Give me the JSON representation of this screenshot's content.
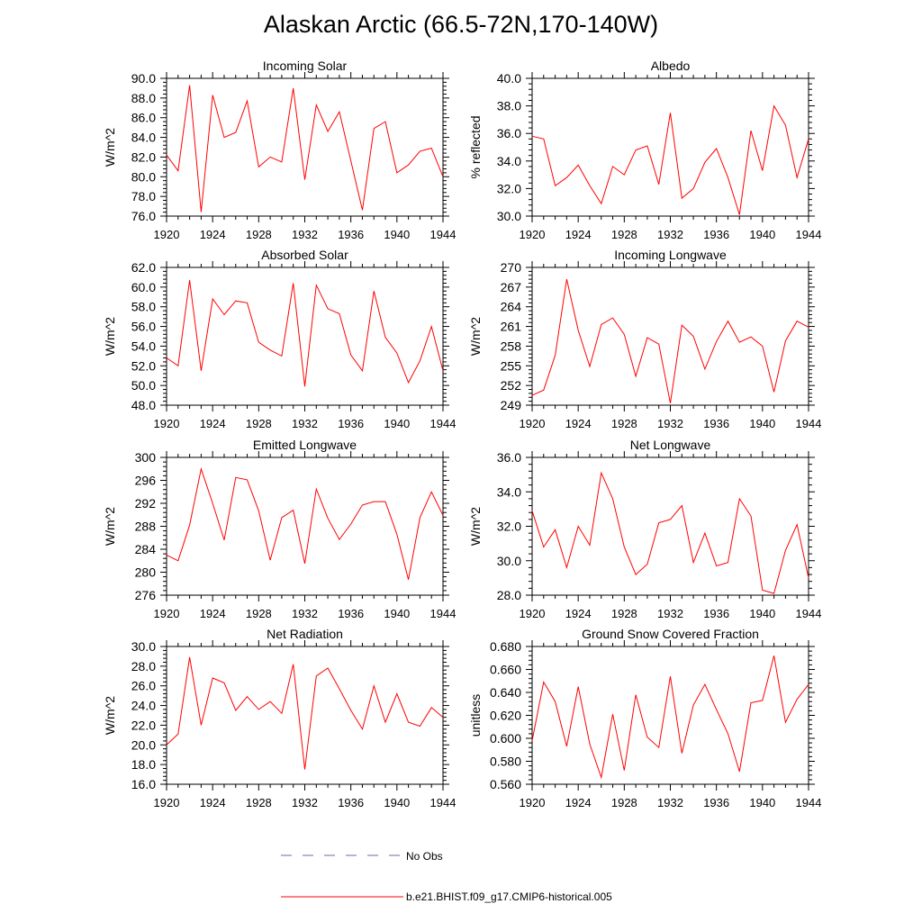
{
  "figure": {
    "title": "Alaskan Arctic (66.5-72N,170-140W)"
  },
  "legend": {
    "obs_label": "No Obs",
    "obs_color": "#6a6aa8",
    "model_label": "b.e21.BHIST.f09_g17.CMIP6-historical.005",
    "model_color": "#ff0000"
  },
  "chart_data": [
    {
      "type": "line",
      "title": "Incoming Solar",
      "ylabel": "W/m^2",
      "xlim": [
        1920,
        1944
      ],
      "ylim": [
        76.0,
        90.0
      ],
      "xticks": [
        "1920",
        "1924",
        "1928",
        "1932",
        "1936",
        "1940",
        "1944"
      ],
      "yticks": [
        "76.0",
        "78.0",
        "80.0",
        "82.0",
        "84.0",
        "86.0",
        "88.0",
        "90.0"
      ],
      "x": [
        1920,
        1921,
        1922,
        1923,
        1924,
        1925,
        1926,
        1927,
        1928,
        1929,
        1930,
        1931,
        1932,
        1933,
        1934,
        1935,
        1936,
        1937,
        1938,
        1939,
        1940,
        1941,
        1942,
        1943,
        1944
      ],
      "series": [
        {
          "name": "b.e21.BHIST.f09_g17.CMIP6-historical.005",
          "values": [
            82.2,
            80.6,
            89.3,
            76.4,
            88.3,
            84.0,
            84.5,
            87.7,
            81.0,
            82.0,
            81.5,
            89.0,
            79.7,
            87.3,
            84.6,
            86.6,
            81.6,
            76.6,
            84.9,
            85.6,
            80.4,
            81.2,
            82.6,
            82.9,
            80.0
          ]
        }
      ]
    },
    {
      "type": "line",
      "title": "Albedo",
      "ylabel": "% reflected",
      "xlim": [
        1920,
        1944
      ],
      "ylim": [
        30.0,
        40.0
      ],
      "xticks": [
        "1920",
        "1924",
        "1928",
        "1932",
        "1936",
        "1940",
        "1944"
      ],
      "yticks": [
        "30.0",
        "32.0",
        "34.0",
        "36.0",
        "38.0",
        "40.0"
      ],
      "x": [
        1920,
        1921,
        1922,
        1923,
        1924,
        1925,
        1926,
        1927,
        1928,
        1929,
        1930,
        1931,
        1932,
        1933,
        1934,
        1935,
        1936,
        1937,
        1938,
        1939,
        1940,
        1941,
        1942,
        1943,
        1944
      ],
      "series": [
        {
          "name": "b.e21.BHIST.f09_g17.CMIP6-historical.005",
          "values": [
            35.8,
            35.6,
            32.2,
            32.8,
            33.7,
            32.2,
            30.9,
            33.6,
            33.0,
            34.8,
            35.1,
            32.3,
            37.5,
            31.3,
            32.0,
            33.9,
            34.9,
            32.8,
            30.1,
            36.2,
            33.3,
            38.0,
            36.6,
            32.8,
            35.6
          ]
        }
      ]
    },
    {
      "type": "line",
      "title": "Absorbed Solar",
      "ylabel": "W/m^2",
      "xlim": [
        1920,
        1944
      ],
      "ylim": [
        48.0,
        62.0
      ],
      "xticks": [
        "1920",
        "1924",
        "1928",
        "1932",
        "1936",
        "1940",
        "1944"
      ],
      "yticks": [
        "48.0",
        "50.0",
        "52.0",
        "54.0",
        "56.0",
        "58.0",
        "60.0",
        "62.0"
      ],
      "x": [
        1920,
        1921,
        1922,
        1923,
        1924,
        1925,
        1926,
        1927,
        1928,
        1929,
        1930,
        1931,
        1932,
        1933,
        1934,
        1935,
        1936,
        1937,
        1938,
        1939,
        1940,
        1941,
        1942,
        1943,
        1944
      ],
      "series": [
        {
          "name": "b.e21.BHIST.f09_g17.CMIP6-historical.005",
          "values": [
            52.8,
            52.0,
            60.7,
            51.5,
            58.8,
            57.2,
            58.6,
            58.4,
            54.4,
            53.6,
            53.0,
            60.4,
            49.9,
            60.2,
            57.8,
            57.3,
            53.1,
            51.5,
            59.6,
            54.9,
            53.3,
            50.3,
            52.5,
            56.0,
            51.5
          ]
        }
      ]
    },
    {
      "type": "line",
      "title": "Incoming Longwave",
      "ylabel": "W/m^2",
      "xlim": [
        1920,
        1944
      ],
      "ylim": [
        249,
        270
      ],
      "xticks": [
        "1920",
        "1924",
        "1928",
        "1932",
        "1936",
        "1940",
        "1944"
      ],
      "yticks": [
        "249",
        "252",
        "255",
        "258",
        "261",
        "264",
        "267",
        "270"
      ],
      "x": [
        1920,
        1921,
        1922,
        1923,
        1924,
        1925,
        1926,
        1927,
        1928,
        1929,
        1930,
        1931,
        1932,
        1933,
        1934,
        1935,
        1936,
        1937,
        1938,
        1939,
        1940,
        1941,
        1942,
        1943,
        1944
      ],
      "series": [
        {
          "name": "b.e21.BHIST.f09_g17.CMIP6-historical.005",
          "values": [
            250.5,
            251.3,
            256.6,
            268.2,
            260.4,
            254.9,
            261.3,
            262.3,
            259.8,
            253.4,
            259.3,
            258.3,
            249.3,
            261.2,
            259.5,
            254.5,
            258.7,
            261.8,
            258.6,
            259.4,
            258.0,
            251.0,
            258.8,
            261.8,
            260.9
          ]
        }
      ]
    },
    {
      "type": "line",
      "title": "Emitted Longwave",
      "ylabel": "W/m^2",
      "xlim": [
        1920,
        1944
      ],
      "ylim": [
        276,
        300
      ],
      "xticks": [
        "1920",
        "1924",
        "1928",
        "1932",
        "1936",
        "1940",
        "1944"
      ],
      "yticks": [
        "276",
        "280",
        "284",
        "288",
        "292",
        "296",
        "300"
      ],
      "x": [
        1920,
        1921,
        1922,
        1923,
        1924,
        1925,
        1926,
        1927,
        1928,
        1929,
        1930,
        1931,
        1932,
        1933,
        1934,
        1935,
        1936,
        1937,
        1938,
        1939,
        1940,
        1941,
        1942,
        1943,
        1944
      ],
      "series": [
        {
          "name": "b.e21.BHIST.f09_g17.CMIP6-historical.005",
          "values": [
            283.0,
            282.0,
            288.2,
            298.0,
            292.0,
            285.6,
            296.5,
            296.1,
            290.7,
            282.1,
            289.5,
            290.8,
            281.5,
            294.5,
            289.4,
            285.7,
            288.4,
            291.7,
            292.3,
            292.3,
            286.6,
            278.7,
            289.5,
            294.0,
            289.9
          ]
        }
      ]
    },
    {
      "type": "line",
      "title": "Net Longwave",
      "ylabel": "W/m^2",
      "xlim": [
        1920,
        1944
      ],
      "ylim": [
        28.0,
        36.0
      ],
      "xticks": [
        "1920",
        "1924",
        "1928",
        "1932",
        "1936",
        "1940",
        "1944"
      ],
      "yticks": [
        "28.0",
        "30.0",
        "32.0",
        "34.0",
        "36.0"
      ],
      "x": [
        1920,
        1921,
        1922,
        1923,
        1924,
        1925,
        1926,
        1927,
        1928,
        1929,
        1930,
        1931,
        1932,
        1933,
        1934,
        1935,
        1936,
        1937,
        1938,
        1939,
        1940,
        1941,
        1942,
        1943,
        1944
      ],
      "series": [
        {
          "name": "b.e21.BHIST.f09_g17.CMIP6-historical.005",
          "values": [
            32.9,
            30.8,
            31.8,
            29.6,
            32.0,
            30.9,
            35.1,
            33.6,
            30.8,
            29.2,
            29.8,
            32.2,
            32.4,
            33.2,
            29.9,
            31.6,
            29.7,
            29.9,
            33.6,
            32.6,
            28.3,
            28.1,
            30.6,
            32.1,
            29.0
          ]
        }
      ]
    },
    {
      "type": "line",
      "title": "Net Radiation",
      "ylabel": "W/m^2",
      "xlim": [
        1920,
        1944
      ],
      "ylim": [
        16.0,
        30.0
      ],
      "xticks": [
        "1920",
        "1924",
        "1928",
        "1932",
        "1936",
        "1940",
        "1944"
      ],
      "yticks": [
        "16.0",
        "18.0",
        "20.0",
        "22.0",
        "24.0",
        "26.0",
        "28.0",
        "30.0"
      ],
      "x": [
        1920,
        1921,
        1922,
        1923,
        1924,
        1925,
        1926,
        1927,
        1928,
        1929,
        1930,
        1931,
        1932,
        1933,
        1934,
        1935,
        1936,
        1937,
        1938,
        1939,
        1940,
        1941,
        1942,
        1943,
        1944
      ],
      "series": [
        {
          "name": "b.e21.BHIST.f09_g17.CMIP6-historical.005",
          "values": [
            20.0,
            21.1,
            28.9,
            22.0,
            26.8,
            26.3,
            23.5,
            24.9,
            23.6,
            24.4,
            23.2,
            28.2,
            17.5,
            27.0,
            27.8,
            25.7,
            23.5,
            21.6,
            26.0,
            22.3,
            25.2,
            22.3,
            21.9,
            23.8,
            22.8
          ]
        }
      ]
    },
    {
      "type": "line",
      "title": "Ground Snow Covered Fraction",
      "ylabel": "unitless",
      "xlim": [
        1920,
        1944
      ],
      "ylim": [
        0.56,
        0.68
      ],
      "xticks": [
        "1920",
        "1924",
        "1928",
        "1932",
        "1936",
        "1940",
        "1944"
      ],
      "yticks": [
        "0.560",
        "0.580",
        "0.600",
        "0.620",
        "0.640",
        "0.660",
        "0.680"
      ],
      "x": [
        1920,
        1921,
        1922,
        1923,
        1924,
        1925,
        1926,
        1927,
        1928,
        1929,
        1930,
        1931,
        1932,
        1933,
        1934,
        1935,
        1936,
        1937,
        1938,
        1939,
        1940,
        1941,
        1942,
        1943,
        1944
      ],
      "series": [
        {
          "name": "b.e21.BHIST.f09_g17.CMIP6-historical.005",
          "values": [
            0.598,
            0.649,
            0.632,
            0.593,
            0.645,
            0.595,
            0.566,
            0.621,
            0.572,
            0.638,
            0.601,
            0.592,
            0.654,
            0.587,
            0.629,
            0.647,
            0.625,
            0.604,
            0.571,
            0.631,
            0.633,
            0.672,
            0.614,
            0.634,
            0.647
          ]
        }
      ]
    }
  ]
}
